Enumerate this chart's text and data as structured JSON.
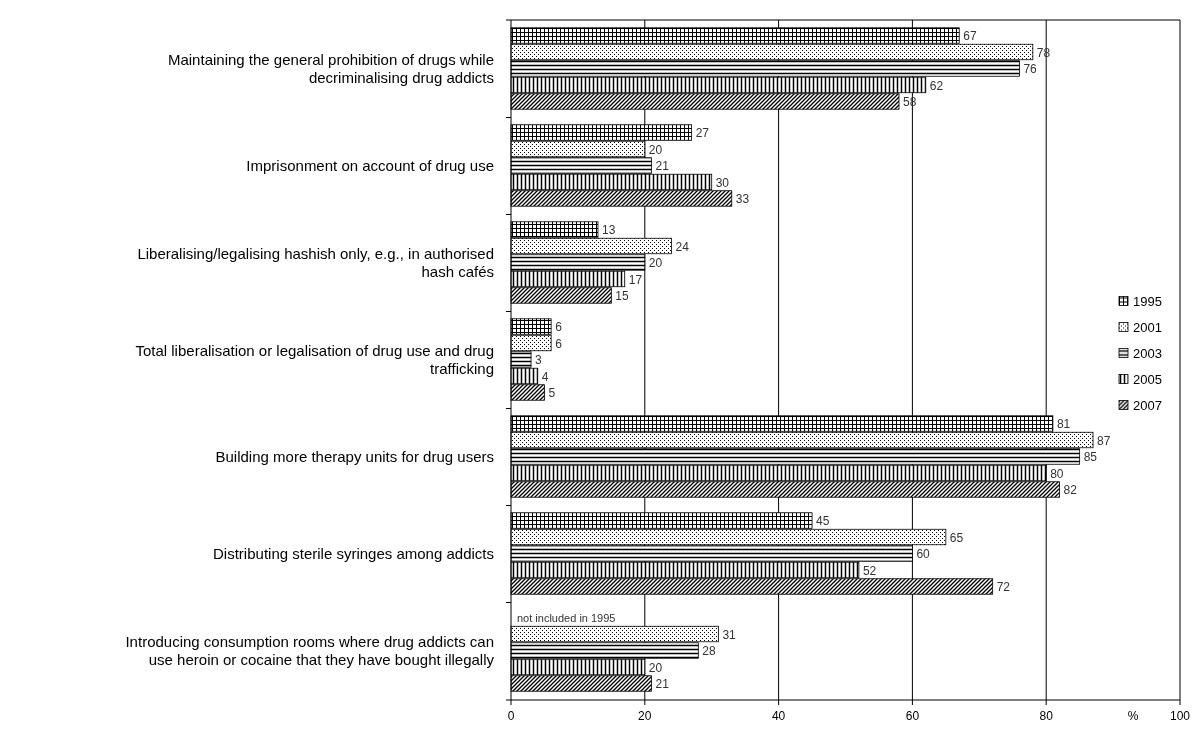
{
  "chart_data": {
    "type": "bar",
    "orientation": "horizontal",
    "xlabel": "%",
    "categories": [
      "Maintaining the general prohibition of drugs while decriminalising drug addicts",
      "Imprisonment on account of drug use",
      "Liberalising/legalising  hashish only, e.g., in authorised hash cafés",
      "Total liberalisation or legalisation  of drug use and drug trafficking",
      "Building more therapy units for drug users",
      "Distributing sterile syringes among addicts",
      "Introducing consumption rooms where drug addicts can use heroin or cocaine that they have bought illegally"
    ],
    "series": [
      {
        "name": "1995",
        "color": "#000000",
        "values": [
          67,
          27,
          13,
          6,
          81,
          45,
          null
        ]
      },
      {
        "name": "2001",
        "color": "#000000",
        "values": [
          78,
          20,
          24,
          6,
          87,
          65,
          31
        ]
      },
      {
        "name": "2003",
        "color": "#000000",
        "values": [
          76,
          21,
          20,
          3,
          85,
          60,
          28
        ]
      },
      {
        "name": "2005",
        "color": "#000000",
        "values": [
          62,
          30,
          17,
          4,
          80,
          52,
          20
        ]
      },
      {
        "name": "2007",
        "color": "#000000",
        "values": [
          58,
          33,
          15,
          5,
          82,
          72,
          21
        ]
      }
    ],
    "xlim": [
      0,
      100
    ],
    "xticks": [
      0,
      20,
      40,
      60,
      80,
      100
    ],
    "grid": "x",
    "legend": "right",
    "data_labels": true,
    "annotations": [
      {
        "text": "not included in 1995",
        "x": 0,
        "y": "Introducing consumption rooms where drug addicts can use heroin or cocaine that they have bought illegally"
      }
    ]
  }
}
